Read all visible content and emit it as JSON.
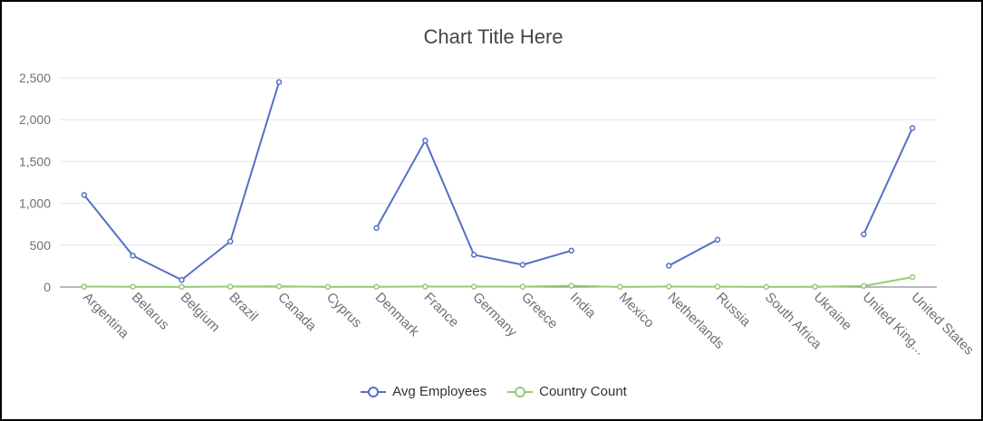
{
  "chart_data": {
    "type": "line",
    "title": "Chart Title Here",
    "categories": [
      "Argentina",
      "Belarus",
      "Belgium",
      "Brazil",
      "Canada",
      "Cyprus",
      "Denmark",
      "France",
      "Germany",
      "Greece",
      "India",
      "Mexico",
      "Netherlands",
      "Russia",
      "South Africa",
      "Ukraine",
      "United Kingdom",
      "United States"
    ],
    "x_tick_labels": [
      "Argentina",
      "Belarus",
      "Belgium",
      "Brazil",
      "Canada",
      "Cyprus",
      "Denmark",
      "France",
      "Germany",
      "Greece",
      "India",
      "Mexico",
      "Netherlands",
      "Russia",
      "South Africa",
      "Ukraine",
      "United King...",
      "United States"
    ],
    "ylim": [
      0,
      2500
    ],
    "y_ticks": [
      0,
      500,
      1000,
      1500,
      2000,
      2500
    ],
    "y_tick_labels": [
      "0",
      "500",
      "1,000",
      "1,500",
      "2,000",
      "2,500"
    ],
    "grid": true,
    "legend_position": "bottom-center",
    "series": [
      {
        "name": "Avg Employees",
        "color": "#5470c6",
        "values": [
          1100,
          375,
          85,
          545,
          2450,
          null,
          705,
          1750,
          385,
          265,
          435,
          null,
          255,
          565,
          null,
          null,
          630,
          1900
        ]
      },
      {
        "name": "Country Count",
        "color": "#91cc75",
        "values": [
          5,
          3,
          2,
          5,
          8,
          2,
          3,
          5,
          5,
          4,
          15,
          2,
          5,
          4,
          2,
          3,
          12,
          118
        ]
      }
    ]
  }
}
